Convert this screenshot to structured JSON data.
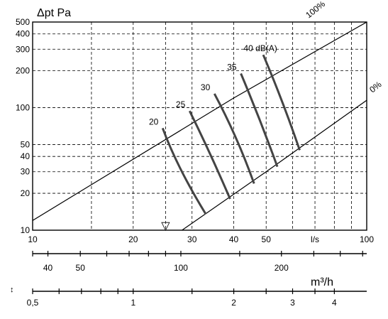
{
  "chart_data": {
    "type": "line",
    "title": "",
    "ylabel": "Δpt Pa",
    "x_scale": "log",
    "y_scale": "log",
    "xlim": [
      10,
      100
    ],
    "ylim": [
      10,
      500
    ],
    "grid": true,
    "x_ticks_ls": [
      {
        "v": 10,
        "label": "10"
      },
      {
        "v": 20,
        "label": "20"
      },
      {
        "v": 30,
        "label": "30"
      },
      {
        "v": 40,
        "label": "40"
      },
      {
        "v": 50,
        "label": "50"
      },
      {
        "v": 70,
        "label": "l/s"
      },
      {
        "v": 100,
        "label": "100"
      }
    ],
    "x_grid_ls": [
      15,
      20,
      25,
      30,
      40,
      50,
      60,
      70,
      80,
      90
    ],
    "y_ticks": [
      10,
      20,
      30,
      40,
      50,
      100,
      200,
      300,
      400,
      500
    ],
    "m3h_axis": {
      "unit": "m³/h",
      "ticks": [
        40,
        50,
        100,
        200
      ],
      "minor_ticks": [
        36,
        60,
        70,
        80,
        90,
        150,
        250,
        300,
        350
      ]
    },
    "secondary_axis": {
      "ticks": [
        {
          "v": 0.5,
          "label": "0,5"
        },
        {
          "v": 1,
          "label": "1"
        },
        {
          "v": 2,
          "label": "2"
        },
        {
          "v": 3,
          "label": "3"
        },
        {
          "v": 4,
          "label": "4"
        }
      ],
      "minor_ticks": [
        0.6,
        0.7,
        0.8,
        0.9,
        1.5,
        2.5,
        3.5
      ]
    },
    "series": [
      {
        "name": "100%",
        "points": [
          [
            10,
            12
          ],
          [
            40,
            120
          ],
          [
            100,
            500
          ]
        ]
      },
      {
        "name": "0%",
        "points": [
          [
            28,
            10
          ],
          [
            50,
            30
          ],
          [
            100,
            115
          ]
        ]
      }
    ],
    "iso_lines": [
      {
        "label": "20",
        "points": [
          [
            24.5,
            68
          ],
          [
            27,
            33
          ],
          [
            33,
            13.5
          ]
        ]
      },
      {
        "label": "25",
        "points": [
          [
            29.5,
            94
          ],
          [
            34,
            43
          ],
          [
            39,
            18
          ]
        ]
      },
      {
        "label": "30",
        "points": [
          [
            35,
            130
          ],
          [
            41,
            58
          ],
          [
            46,
            24
          ]
        ]
      },
      {
        "label": "35",
        "points": [
          [
            42,
            190
          ],
          [
            48,
            80
          ],
          [
            54,
            33
          ]
        ]
      },
      {
        "label": "40 dB(A)",
        "points": [
          [
            49,
            270
          ],
          [
            56,
            115
          ],
          [
            63,
            45
          ]
        ]
      }
    ],
    "marker": {
      "symbol": "▽",
      "x": 25
    },
    "unit_toggle_icon": "↕"
  }
}
